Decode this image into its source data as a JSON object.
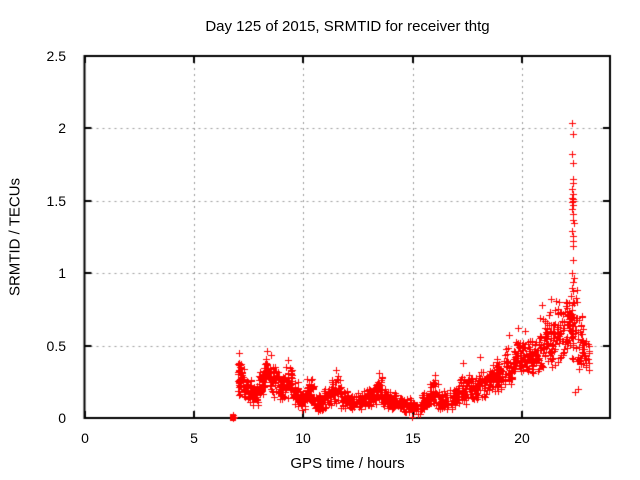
{
  "colors": {
    "background": "#ffffff",
    "axis": "#000000",
    "grid": "#9a9a9a",
    "text": "#000000",
    "marker": "#ff0000"
  },
  "chart_data": {
    "type": "scatter",
    "title": "Day 125 of 2015, SRMTID for receiver thtg",
    "xlabel": "GPS time / hours",
    "ylabel": "SRMTID / TECUs",
    "xlim": [
      0,
      24
    ],
    "ylim": [
      0,
      2.5
    ],
    "xticks": {
      "values": [
        0,
        5,
        10,
        15,
        20
      ],
      "labels": [
        "0",
        "5",
        "10",
        "15",
        "20"
      ]
    },
    "yticks": {
      "values": [
        0,
        0.5,
        1,
        1.5,
        2,
        2.5
      ],
      "labels": [
        "0",
        "0.5",
        "1",
        "1.5",
        "2",
        "2.5"
      ]
    },
    "grid": {
      "x": [
        5,
        10,
        15,
        20
      ],
      "y": [
        0.5,
        1,
        1.5,
        2
      ]
    },
    "legend": "none",
    "marker": {
      "shape": "plus",
      "color": "#ff0000",
      "size": 7
    },
    "series_name": "SRMTID",
    "seed": 20150125,
    "start_square": {
      "x": 6.78,
      "y": 0.005,
      "size": 6
    },
    "start_points": [
      [
        6.76,
        0.0
      ],
      [
        6.8,
        0.02
      ],
      [
        6.82,
        0.01
      ]
    ],
    "band_segments": [
      [
        7.0,
        7.3,
        0.14,
        0.42,
        40
      ],
      [
        7.3,
        7.6,
        0.1,
        0.3,
        34
      ],
      [
        7.6,
        7.95,
        0.08,
        0.24,
        34
      ],
      [
        7.95,
        8.2,
        0.12,
        0.36,
        36
      ],
      [
        8.2,
        8.55,
        0.15,
        0.45,
        44
      ],
      [
        8.55,
        8.85,
        0.12,
        0.4,
        38
      ],
      [
        8.85,
        9.15,
        0.1,
        0.33,
        34
      ],
      [
        9.15,
        9.5,
        0.12,
        0.38,
        38
      ],
      [
        9.5,
        9.85,
        0.07,
        0.26,
        34
      ],
      [
        9.85,
        10.15,
        0.05,
        0.2,
        32
      ],
      [
        10.15,
        10.5,
        0.07,
        0.28,
        36
      ],
      [
        10.5,
        10.9,
        0.04,
        0.17,
        34
      ],
      [
        10.9,
        11.3,
        0.06,
        0.22,
        34
      ],
      [
        11.3,
        11.7,
        0.09,
        0.3,
        38
      ],
      [
        11.7,
        12.1,
        0.06,
        0.2,
        34
      ],
      [
        12.1,
        12.6,
        0.04,
        0.18,
        38
      ],
      [
        12.6,
        13.0,
        0.05,
        0.2,
        34
      ],
      [
        13.0,
        13.3,
        0.07,
        0.24,
        30
      ],
      [
        13.3,
        13.6,
        0.09,
        0.3,
        32
      ],
      [
        13.6,
        14.0,
        0.06,
        0.22,
        34
      ],
      [
        14.0,
        14.5,
        0.05,
        0.18,
        38
      ],
      [
        14.5,
        15.0,
        0.03,
        0.15,
        38
      ],
      [
        15.0,
        15.4,
        0.01,
        0.12,
        34
      ],
      [
        15.4,
        15.75,
        0.04,
        0.18,
        32
      ],
      [
        15.75,
        16.15,
        0.07,
        0.27,
        36
      ],
      [
        16.15,
        16.7,
        0.05,
        0.2,
        40
      ],
      [
        16.7,
        17.1,
        0.05,
        0.22,
        34
      ],
      [
        17.1,
        17.55,
        0.08,
        0.33,
        38
      ],
      [
        17.55,
        17.95,
        0.1,
        0.3,
        36
      ],
      [
        17.95,
        18.35,
        0.13,
        0.35,
        38
      ],
      [
        18.35,
        18.75,
        0.15,
        0.38,
        38
      ],
      [
        18.75,
        19.15,
        0.18,
        0.43,
        38
      ],
      [
        19.15,
        19.55,
        0.22,
        0.5,
        38
      ],
      [
        19.55,
        19.95,
        0.27,
        0.55,
        38
      ],
      [
        19.95,
        20.35,
        0.3,
        0.56,
        38
      ],
      [
        20.35,
        20.75,
        0.28,
        0.55,
        38
      ],
      [
        20.75,
        21.15,
        0.3,
        0.72,
        40
      ],
      [
        21.15,
        21.55,
        0.3,
        0.78,
        40
      ],
      [
        21.55,
        21.95,
        0.35,
        0.85,
        42
      ],
      [
        21.95,
        22.25,
        0.38,
        0.92,
        36
      ],
      [
        22.25,
        22.5,
        0.35,
        0.9,
        34
      ],
      [
        22.5,
        22.85,
        0.25,
        0.72,
        34
      ],
      [
        22.85,
        23.05,
        0.3,
        0.6,
        16
      ]
    ],
    "outlier_points": [
      [
        7.05,
        0.45
      ],
      [
        8.35,
        0.46
      ],
      [
        9.3,
        0.4
      ],
      [
        11.5,
        0.33
      ],
      [
        13.45,
        0.31
      ],
      [
        14.97,
        0.005
      ],
      [
        16.0,
        0.3
      ],
      [
        17.3,
        0.38
      ],
      [
        18.05,
        0.42
      ],
      [
        19.4,
        0.57
      ],
      [
        19.8,
        0.62
      ],
      [
        20.1,
        0.6
      ],
      [
        20.9,
        0.78
      ],
      [
        21.3,
        0.82
      ],
      [
        22.4,
        0.18
      ],
      [
        22.55,
        0.2
      ]
    ],
    "spike_points": [
      [
        22.28,
        2.04
      ],
      [
        22.3,
        1.96
      ],
      [
        22.27,
        1.82
      ],
      [
        22.31,
        1.76
      ],
      [
        22.29,
        1.65
      ],
      [
        22.32,
        1.62
      ],
      [
        22.28,
        1.58
      ],
      [
        22.3,
        1.55
      ],
      [
        22.27,
        1.52
      ],
      [
        22.31,
        1.51
      ],
      [
        22.29,
        1.5
      ],
      [
        22.33,
        1.5
      ],
      [
        22.26,
        1.49
      ],
      [
        22.3,
        1.47
      ],
      [
        22.28,
        1.44
      ],
      [
        22.32,
        1.41
      ],
      [
        22.3,
        1.37
      ],
      [
        22.34,
        1.35
      ],
      [
        22.28,
        1.29
      ],
      [
        22.31,
        1.26
      ],
      [
        22.29,
        1.22
      ],
      [
        22.33,
        1.19
      ],
      [
        22.3,
        1.09
      ],
      [
        22.28,
        1.0
      ],
      [
        22.35,
        0.97
      ],
      [
        22.3,
        0.94
      ],
      [
        22.26,
        0.9
      ],
      [
        22.32,
        0.88
      ]
    ]
  }
}
